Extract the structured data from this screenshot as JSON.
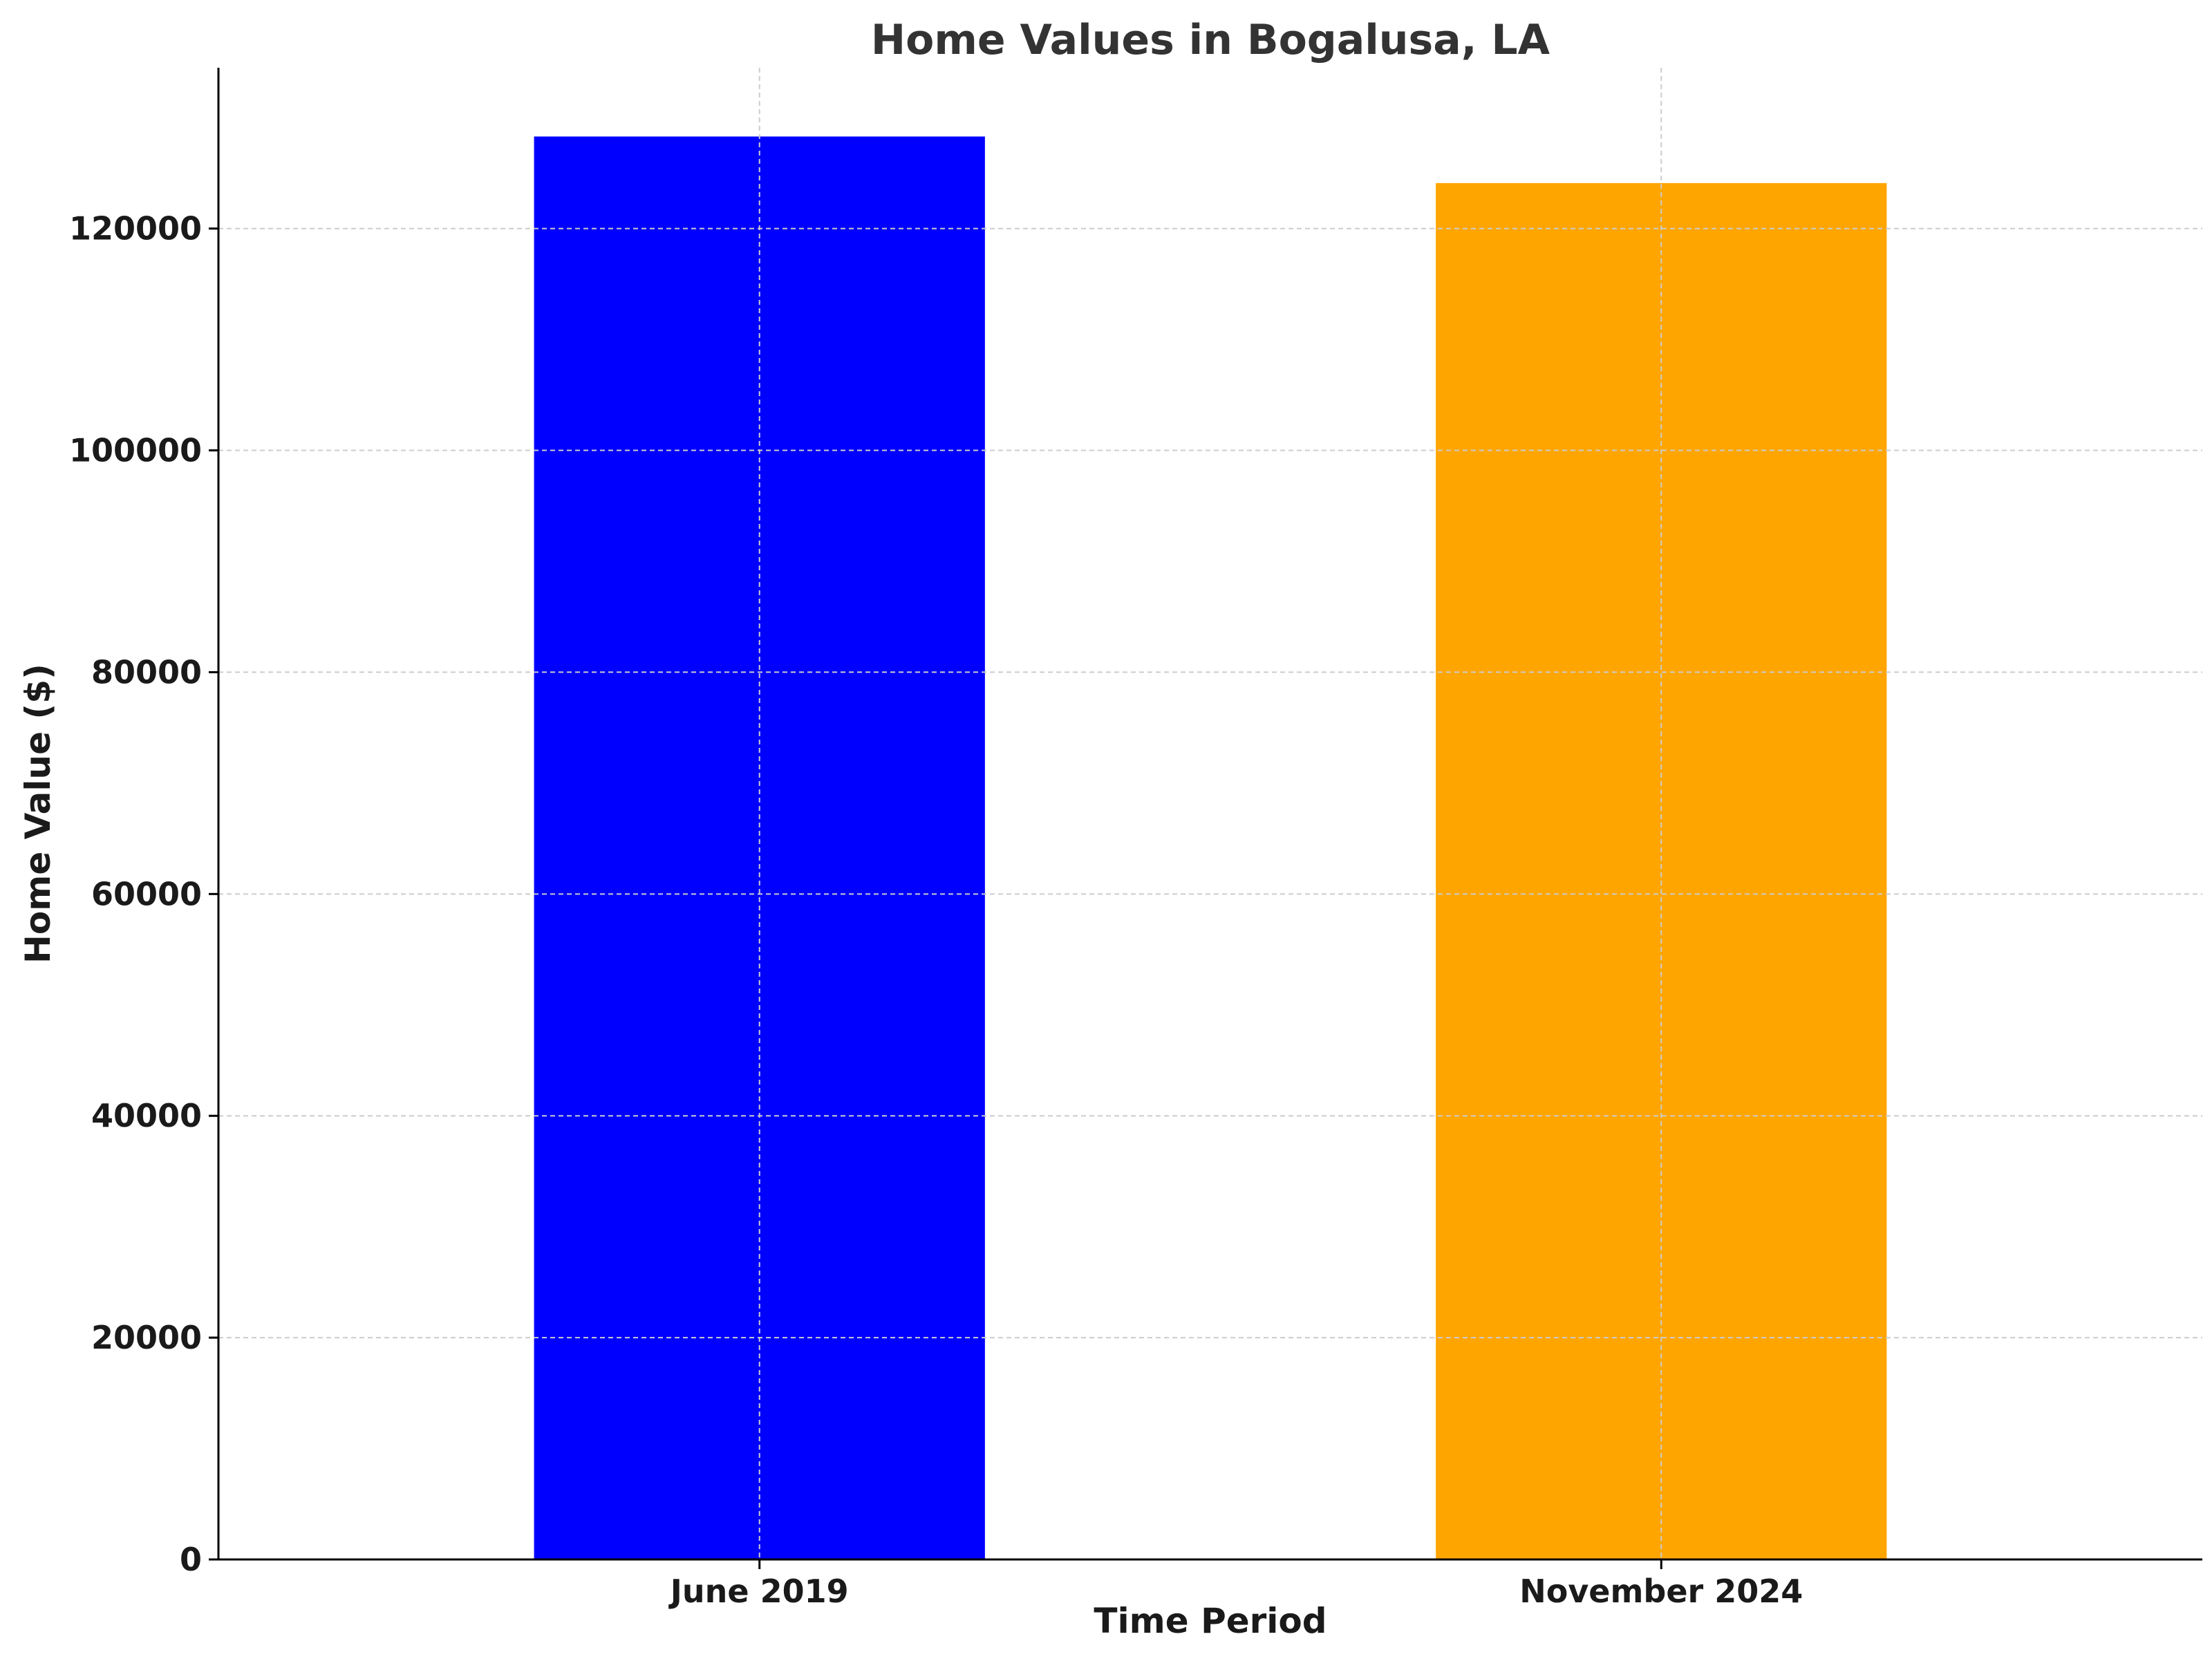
{
  "chart_data": {
    "type": "bar",
    "title": "Home Values in Bogalusa, LA",
    "xlabel": "Time Period",
    "ylabel": "Home Value ($)",
    "categories": [
      "June 2019",
      "November 2024"
    ],
    "values": [
      128300,
      124100
    ],
    "colors": [
      "#0000ff",
      "#ffa500"
    ],
    "ylim": [
      0,
      134500
    ],
    "yticks": [
      0,
      20000,
      40000,
      60000,
      80000,
      100000,
      120000
    ],
    "grid": true
  }
}
